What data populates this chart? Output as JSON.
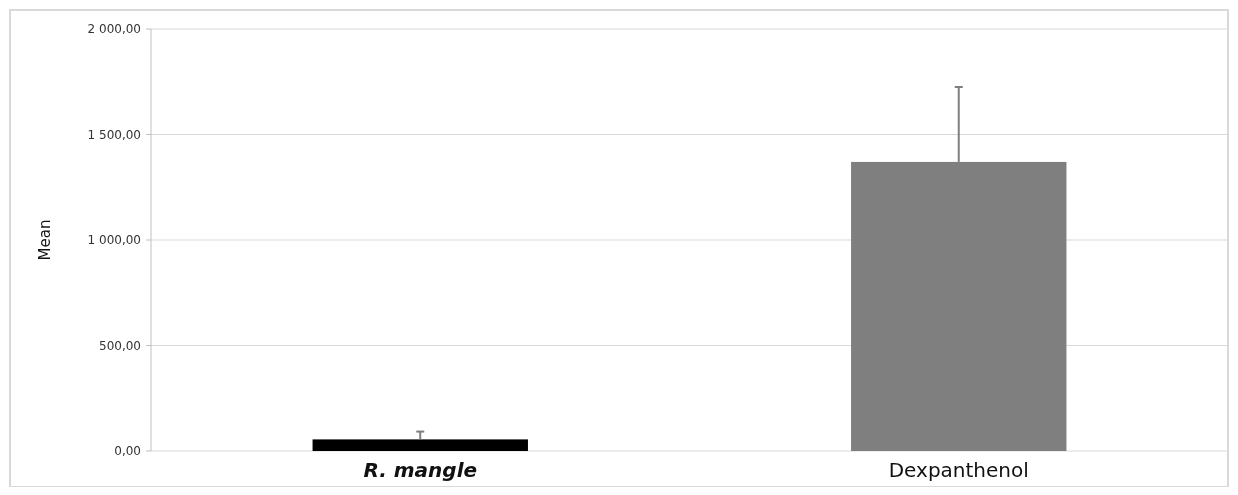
{
  "chart_data": {
    "type": "bar",
    "ylabel": "Mean",
    "categories": [
      "R. mangle",
      "Dexpanthenol"
    ],
    "values": [
      55,
      1370
    ],
    "colors": [
      "#000000",
      "#7f7f7f"
    ],
    "errors": [
      [
        55,
        92
      ],
      [
        1370,
        1725
      ]
    ],
    "ylim": [
      0,
      2000
    ],
    "yticks": [
      {
        "value": 0,
        "label": "0,00"
      },
      {
        "value": 500,
        "label": "500,00"
      },
      {
        "value": 1000,
        "label": "1 000,00"
      },
      {
        "value": 1500,
        "label": "1 500,00"
      },
      {
        "value": 2000,
        "label": "2 000,00"
      }
    ],
    "grid": "y"
  }
}
